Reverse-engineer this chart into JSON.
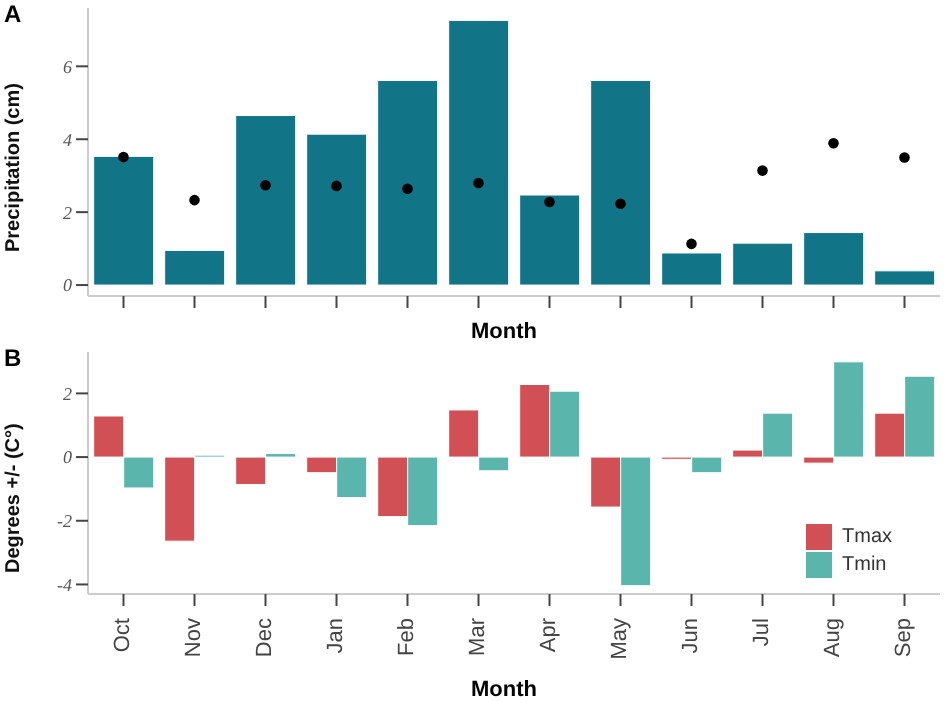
{
  "chart_data": [
    {
      "type": "bar",
      "title": "A",
      "xlabel": "Month",
      "ylabel": "Precipitation (cm)",
      "categories": [
        null,
        null,
        null,
        null,
        null,
        null,
        null,
        null,
        null,
        null,
        null,
        null
      ],
      "series": [
        {
          "type": "bar",
          "color": "#127487",
          "values": [
            3.53,
            0.95,
            4.65,
            4.14,
            5.61,
            7.26,
            2.47,
            5.61,
            0.88,
            1.15,
            1.44,
            0.39
          ]
        },
        {
          "type": "scatter",
          "color": "#000000",
          "values": [
            3.51,
            2.33,
            2.74,
            2.72,
            2.64,
            2.8,
            2.28,
            2.23,
            1.13,
            3.14,
            3.89,
            3.5
          ]
        }
      ],
      "marker": "circle",
      "ylim": [
        -0.3,
        7.6
      ],
      "yticks": [
        0,
        2,
        4,
        6
      ],
      "grid": false,
      "legend": false,
      "tick_labels": "y"
    },
    {
      "type": "bar",
      "title": "B",
      "xlabel": "Month",
      "ylabel": "Degrees +/- (C°)",
      "categories": [
        "Oct",
        "Nov",
        "Dec",
        "Jan",
        "Feb",
        "Mar",
        "Apr",
        "May",
        "Jun",
        "Jul",
        "Aug",
        "Sep"
      ],
      "series": [
        {
          "name": "Tmax",
          "color": "#d05055",
          "values": [
            1.29,
            -2.64,
            -0.86,
            -0.49,
            -1.87,
            1.48,
            2.28,
            -1.57,
            -0.07,
            0.22,
            -0.19,
            1.38
          ]
        },
        {
          "name": "Tmin",
          "color": "#5ab5ac",
          "values": [
            -0.97,
            0.06,
            0.11,
            -1.27,
            -2.15,
            -0.43,
            2.07,
            -4.04,
            -0.49,
            1.38,
            2.99,
            2.54
          ]
        }
      ],
      "ylim": [
        -4.3,
        3.3
      ],
      "yticks": [
        -4,
        -2,
        0,
        2
      ],
      "grid": false,
      "legend": "right"
    }
  ]
}
